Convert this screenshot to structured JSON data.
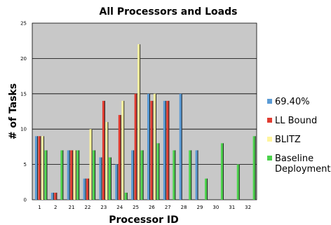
{
  "chart_data": {
    "type": "bar",
    "title": "All Processors and Loads",
    "xlabel": "Processor ID",
    "ylabel": "# of Tasks",
    "ylim": [
      0,
      25
    ],
    "yticks": [
      "0",
      "5",
      "10",
      "15",
      "20",
      "25"
    ],
    "grid": true,
    "legend_position": "right",
    "categories": [
      "1",
      "2",
      "21",
      "22",
      "23",
      "24",
      "25",
      "26",
      "27",
      "28",
      "29",
      "30",
      "31",
      "32"
    ],
    "series": [
      {
        "name": "69.40%",
        "color": "#5b9bd5",
        "values": [
          9,
          1,
          7,
          3,
          6,
          5,
          7,
          15,
          14,
          15,
          7,
          0,
          0,
          0
        ]
      },
      {
        "name": "LL Bound",
        "color": "#e03c31",
        "values": [
          9,
          1,
          7,
          3,
          14,
          12,
          15,
          14,
          14,
          0,
          0,
          0,
          0,
          0
        ]
      },
      {
        "name": "BLITZ",
        "color": "#fff59d",
        "values": [
          9,
          0,
          7,
          10,
          11,
          14,
          22,
          15,
          0,
          0,
          0,
          0,
          0,
          0
        ]
      },
      {
        "name": "Baseline\nDeployment",
        "color": "#4cd24c",
        "values": [
          7,
          7,
          7,
          7,
          6,
          1,
          7,
          8,
          7,
          7,
          3,
          8,
          5,
          9
        ]
      }
    ]
  }
}
